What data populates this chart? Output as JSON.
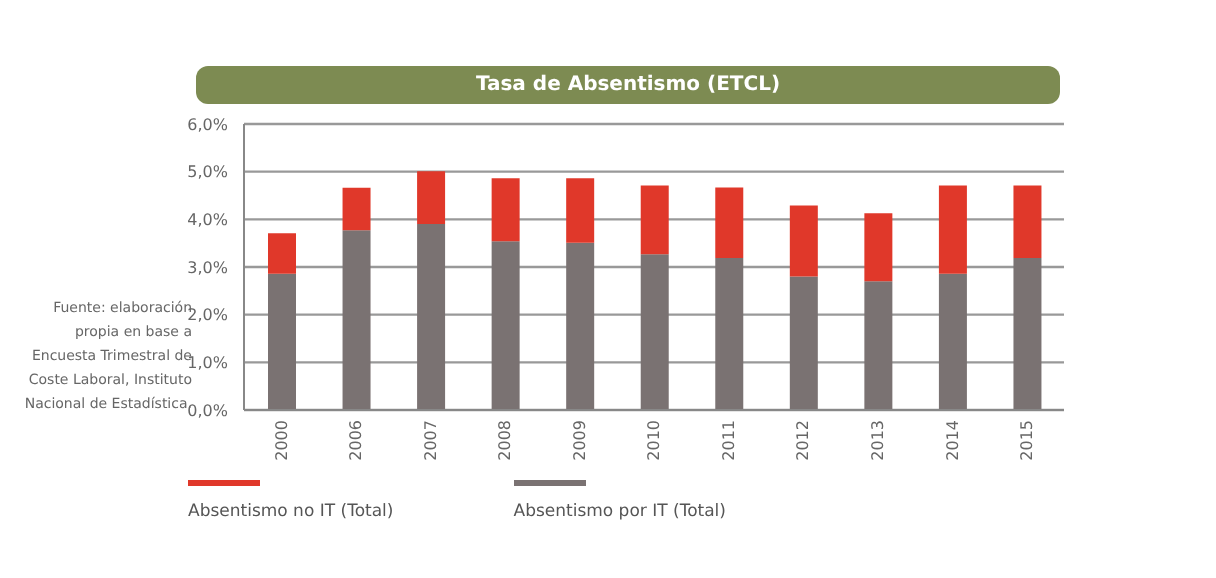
{
  "chart_data": {
    "type": "bar",
    "title": "Tasa de Absentismo (ETCL)",
    "categories": [
      "2000",
      "2006",
      "2007",
      "2008",
      "2009",
      "2010",
      "2011",
      "2012",
      "2013",
      "2014",
      "2015"
    ],
    "stacked": true,
    "series": [
      {
        "name": "Absentismo por IT (Total)",
        "color": "#7a7272",
        "values": [
          2.86,
          3.77,
          3.9,
          3.54,
          3.51,
          3.27,
          3.19,
          2.8,
          2.7,
          2.86,
          3.19
        ]
      },
      {
        "name": "Absentismo no IT (Total)",
        "color": "#e0382a",
        "values": [
          0.85,
          0.89,
          1.11,
          1.32,
          1.35,
          1.44,
          1.48,
          1.49,
          1.43,
          1.85,
          1.52
        ]
      }
    ],
    "ylim": [
      0,
      6
    ],
    "yticks": [
      {
        "value": 0,
        "label": "0,0%"
      },
      {
        "value": 1,
        "label": "1,0%"
      },
      {
        "value": 2,
        "label": "2,0%"
      },
      {
        "value": 3,
        "label": "3,0%"
      },
      {
        "value": 4,
        "label": "4,0%"
      },
      {
        "value": 5,
        "label": "5,0%"
      },
      {
        "value": 6,
        "label": "6,0%"
      }
    ],
    "grid": "y",
    "legend": "bottom left",
    "annotations": [
      "Fuente: elaboración propia en base a Encuesta Trimestral de Coste Laboral, Instituto Nacional de Estadística."
    ]
  }
}
